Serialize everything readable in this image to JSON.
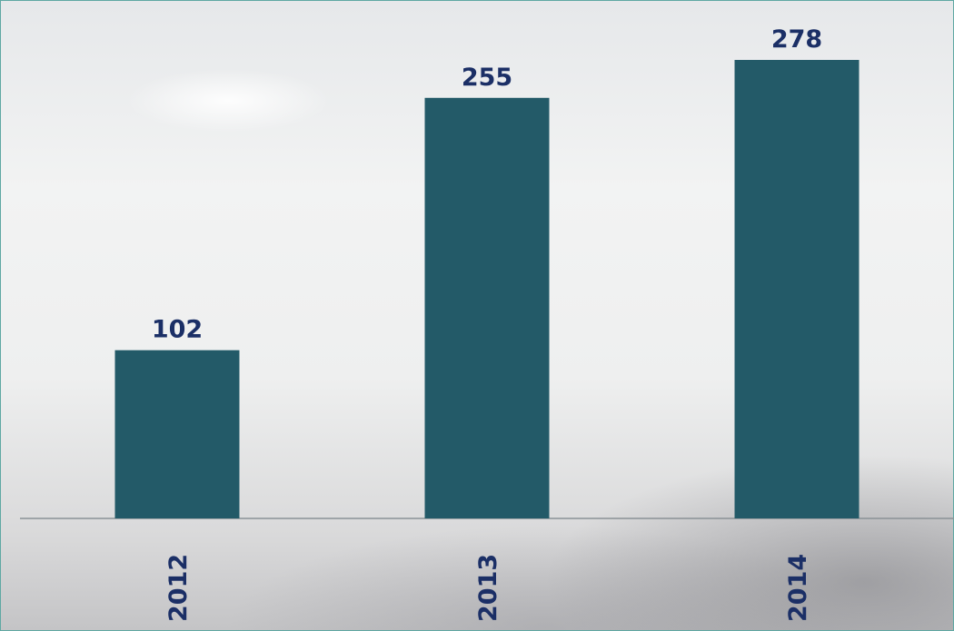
{
  "chart_data": {
    "type": "bar",
    "categories": [
      "2012",
      "2013",
      "2014"
    ],
    "values": [
      102,
      255,
      278
    ],
    "color": "#235a68"
  }
}
